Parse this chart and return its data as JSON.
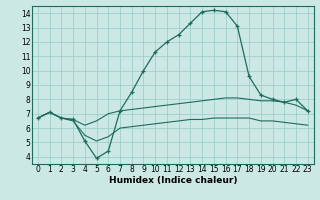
{
  "xlabel": "Humidex (Indice chaleur)",
  "bg_color": "#cce8e4",
  "grid_color": "#9ecfcb",
  "line_color": "#1e6b5e",
  "xlim": [
    -0.5,
    23.5
  ],
  "ylim": [
    3.5,
    14.5
  ],
  "xticks": [
    0,
    1,
    2,
    3,
    4,
    5,
    6,
    7,
    8,
    9,
    10,
    11,
    12,
    13,
    14,
    15,
    16,
    17,
    18,
    19,
    20,
    21,
    22,
    23
  ],
  "yticks": [
    4,
    5,
    6,
    7,
    8,
    9,
    10,
    11,
    12,
    13,
    14
  ],
  "curve1_x": [
    0,
    1,
    2,
    3,
    4,
    5,
    6,
    7,
    8,
    9,
    10,
    11,
    12,
    13,
    14,
    15,
    16,
    17,
    18,
    19,
    20,
    21,
    22,
    23
  ],
  "curve1_y": [
    6.7,
    7.1,
    6.7,
    6.6,
    5.1,
    3.9,
    4.4,
    7.2,
    8.5,
    10.0,
    11.3,
    12.0,
    12.5,
    13.3,
    14.1,
    14.2,
    14.1,
    13.1,
    9.6,
    8.3,
    8.0,
    7.8,
    8.0,
    7.2
  ],
  "curve2_x": [
    0,
    1,
    2,
    3,
    4,
    5,
    6,
    7,
    8,
    9,
    10,
    11,
    12,
    13,
    14,
    15,
    16,
    17,
    18,
    19,
    20,
    21,
    22,
    23
  ],
  "curve2_y": [
    6.7,
    7.1,
    6.7,
    6.6,
    6.2,
    6.5,
    7.0,
    7.2,
    7.3,
    7.4,
    7.5,
    7.6,
    7.7,
    7.8,
    7.9,
    8.0,
    8.1,
    8.1,
    8.0,
    7.9,
    7.9,
    7.8,
    7.6,
    7.2
  ],
  "curve3_x": [
    0,
    1,
    2,
    3,
    4,
    5,
    6,
    7,
    8,
    9,
    10,
    11,
    12,
    13,
    14,
    15,
    16,
    17,
    18,
    19,
    20,
    21,
    22,
    23
  ],
  "curve3_y": [
    6.7,
    7.1,
    6.7,
    6.5,
    5.5,
    5.1,
    5.4,
    6.0,
    6.1,
    6.2,
    6.3,
    6.4,
    6.5,
    6.6,
    6.6,
    6.7,
    6.7,
    6.7,
    6.7,
    6.5,
    6.5,
    6.4,
    6.3,
    6.2
  ],
  "tick_fontsize": 5.5,
  "xlabel_fontsize": 6.5,
  "xlabel_fontweight": "bold"
}
